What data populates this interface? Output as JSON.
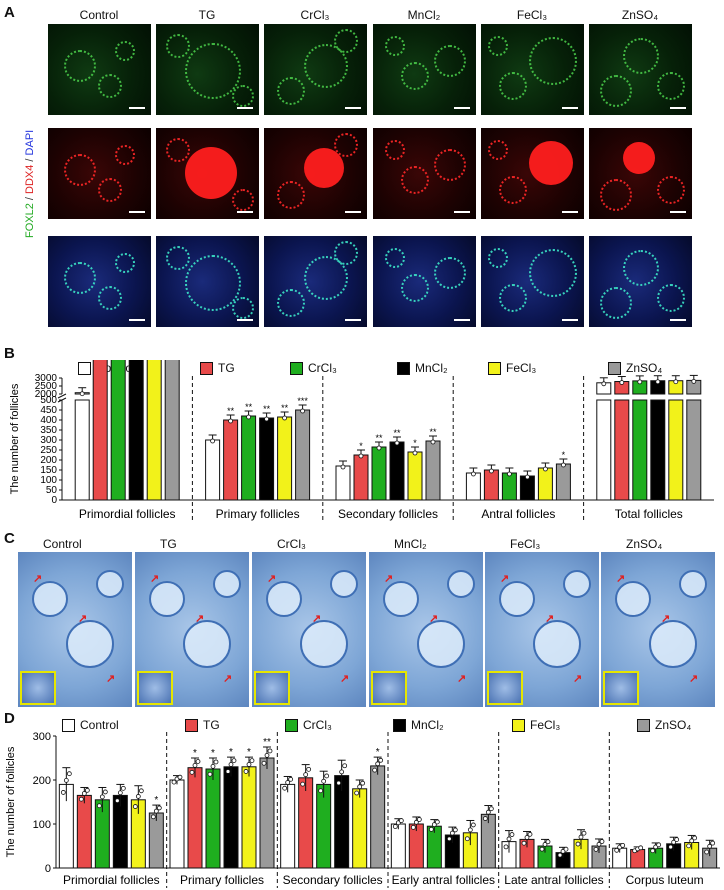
{
  "panel_labels": {
    "a": "A",
    "b": "B",
    "c": "C",
    "d": "D"
  },
  "groups": [
    "Control",
    "TG",
    "CrCl₃",
    "MnCl₂",
    "FeCl₃",
    "ZnSO₄"
  ],
  "colors": {
    "Control": "#ffffff",
    "TG": "#e84a4a",
    "CrCl3": "#1fae1f",
    "MnCl2": "#000000",
    "FeCl3": "#f2f21a",
    "ZnSO4": "#9a9a9a"
  },
  "panel_a": {
    "stain_label_parts": [
      "FOXL2",
      " / ",
      "DDX4",
      " / ",
      "DAPI"
    ],
    "stain_label_colors": [
      "#22aa22",
      "#333333",
      "#dd2222",
      "#333333",
      "#2233dd"
    ]
  },
  "chart_data": [
    {
      "type": "bar",
      "panel": "B",
      "ylabel": "The number of follicles",
      "categories": [
        "Primordial follicles",
        "Primary follicles",
        "Secondary follicles",
        "Antral follicles",
        "Total follicles"
      ],
      "axis_break": true,
      "yticks_lower": [
        0,
        50,
        100,
        150,
        200,
        250,
        300,
        350,
        400,
        450,
        500
      ],
      "yticks_upper": [
        2000,
        2500,
        3000
      ],
      "series": [
        {
          "name": "Control",
          "values": [
            2080,
            300,
            170,
            135,
            2700
          ]
        },
        {
          "name": "TG",
          "values": [
            1980,
            400,
            225,
            150,
            2780
          ]
        },
        {
          "name": "CrCl₃",
          "values": [
            1990,
            420,
            265,
            135,
            2820
          ]
        },
        {
          "name": "MnCl₂",
          "values": [
            1990,
            410,
            290,
            120,
            2830
          ]
        },
        {
          "name": "FeCl₃",
          "values": [
            1990,
            415,
            240,
            160,
            2830
          ]
        },
        {
          "name": "ZnSO₄",
          "values": [
            1950,
            450,
            295,
            180,
            2850
          ]
        }
      ],
      "significance": [
        [
          "",
          "",
          "",
          "",
          "",
          "*"
        ],
        [
          "",
          "**",
          "**",
          "**",
          "**",
          "***"
        ],
        [
          "",
          "*",
          "**",
          "**",
          "*",
          "**"
        ],
        [
          "",
          "",
          "",
          "",
          "",
          "*"
        ],
        [
          "",
          "",
          "",
          "",
          "",
          ""
        ]
      ]
    },
    {
      "type": "bar",
      "panel": "D",
      "ylabel": "The number of follicles",
      "ylim": [
        0,
        300
      ],
      "yticks": [
        0,
        100,
        200,
        300
      ],
      "categories": [
        "Primordial follicles",
        "Primary follicles",
        "Secondary follicles",
        "Early antral follicles",
        "Late antral follicles",
        "Corpus luteum"
      ],
      "series": [
        {
          "name": "Control",
          "values": [
            190,
            200,
            190,
            100,
            60,
            45
          ]
        },
        {
          "name": "TG",
          "values": [
            165,
            228,
            205,
            100,
            65,
            42
          ]
        },
        {
          "name": "CrCl₃",
          "values": [
            155,
            225,
            190,
            95,
            50,
            45
          ]
        },
        {
          "name": "MnCl₂",
          "values": [
            165,
            230,
            210,
            75,
            35,
            55
          ]
        },
        {
          "name": "FeCl₃",
          "values": [
            155,
            230,
            180,
            80,
            65,
            58
          ]
        },
        {
          "name": "ZnSO₄",
          "values": [
            125,
            250,
            232,
            122,
            50,
            45
          ]
        }
      ],
      "errors": [
        [
          38,
          10,
          18,
          12,
          25,
          10
        ],
        [
          18,
          22,
          30,
          16,
          18,
          6
        ],
        [
          28,
          25,
          30,
          15,
          15,
          12
        ],
        [
          25,
          22,
          35,
          18,
          12,
          15
        ],
        [
          32,
          22,
          20,
          28,
          22,
          16
        ],
        [
          18,
          25,
          20,
          20,
          16,
          18
        ]
      ],
      "significance": [
        [
          "",
          "",
          "",
          "",
          "",
          "*"
        ],
        [
          "",
          "*",
          "*",
          "*",
          "*",
          "**"
        ],
        [
          "",
          "",
          "",
          "",
          "",
          "*"
        ],
        [
          "",
          "",
          "",
          "",
          "",
          ""
        ],
        [
          "",
          "",
          "",
          "",
          "",
          ""
        ],
        [
          "",
          "",
          "",
          "",
          "",
          ""
        ]
      ]
    }
  ]
}
